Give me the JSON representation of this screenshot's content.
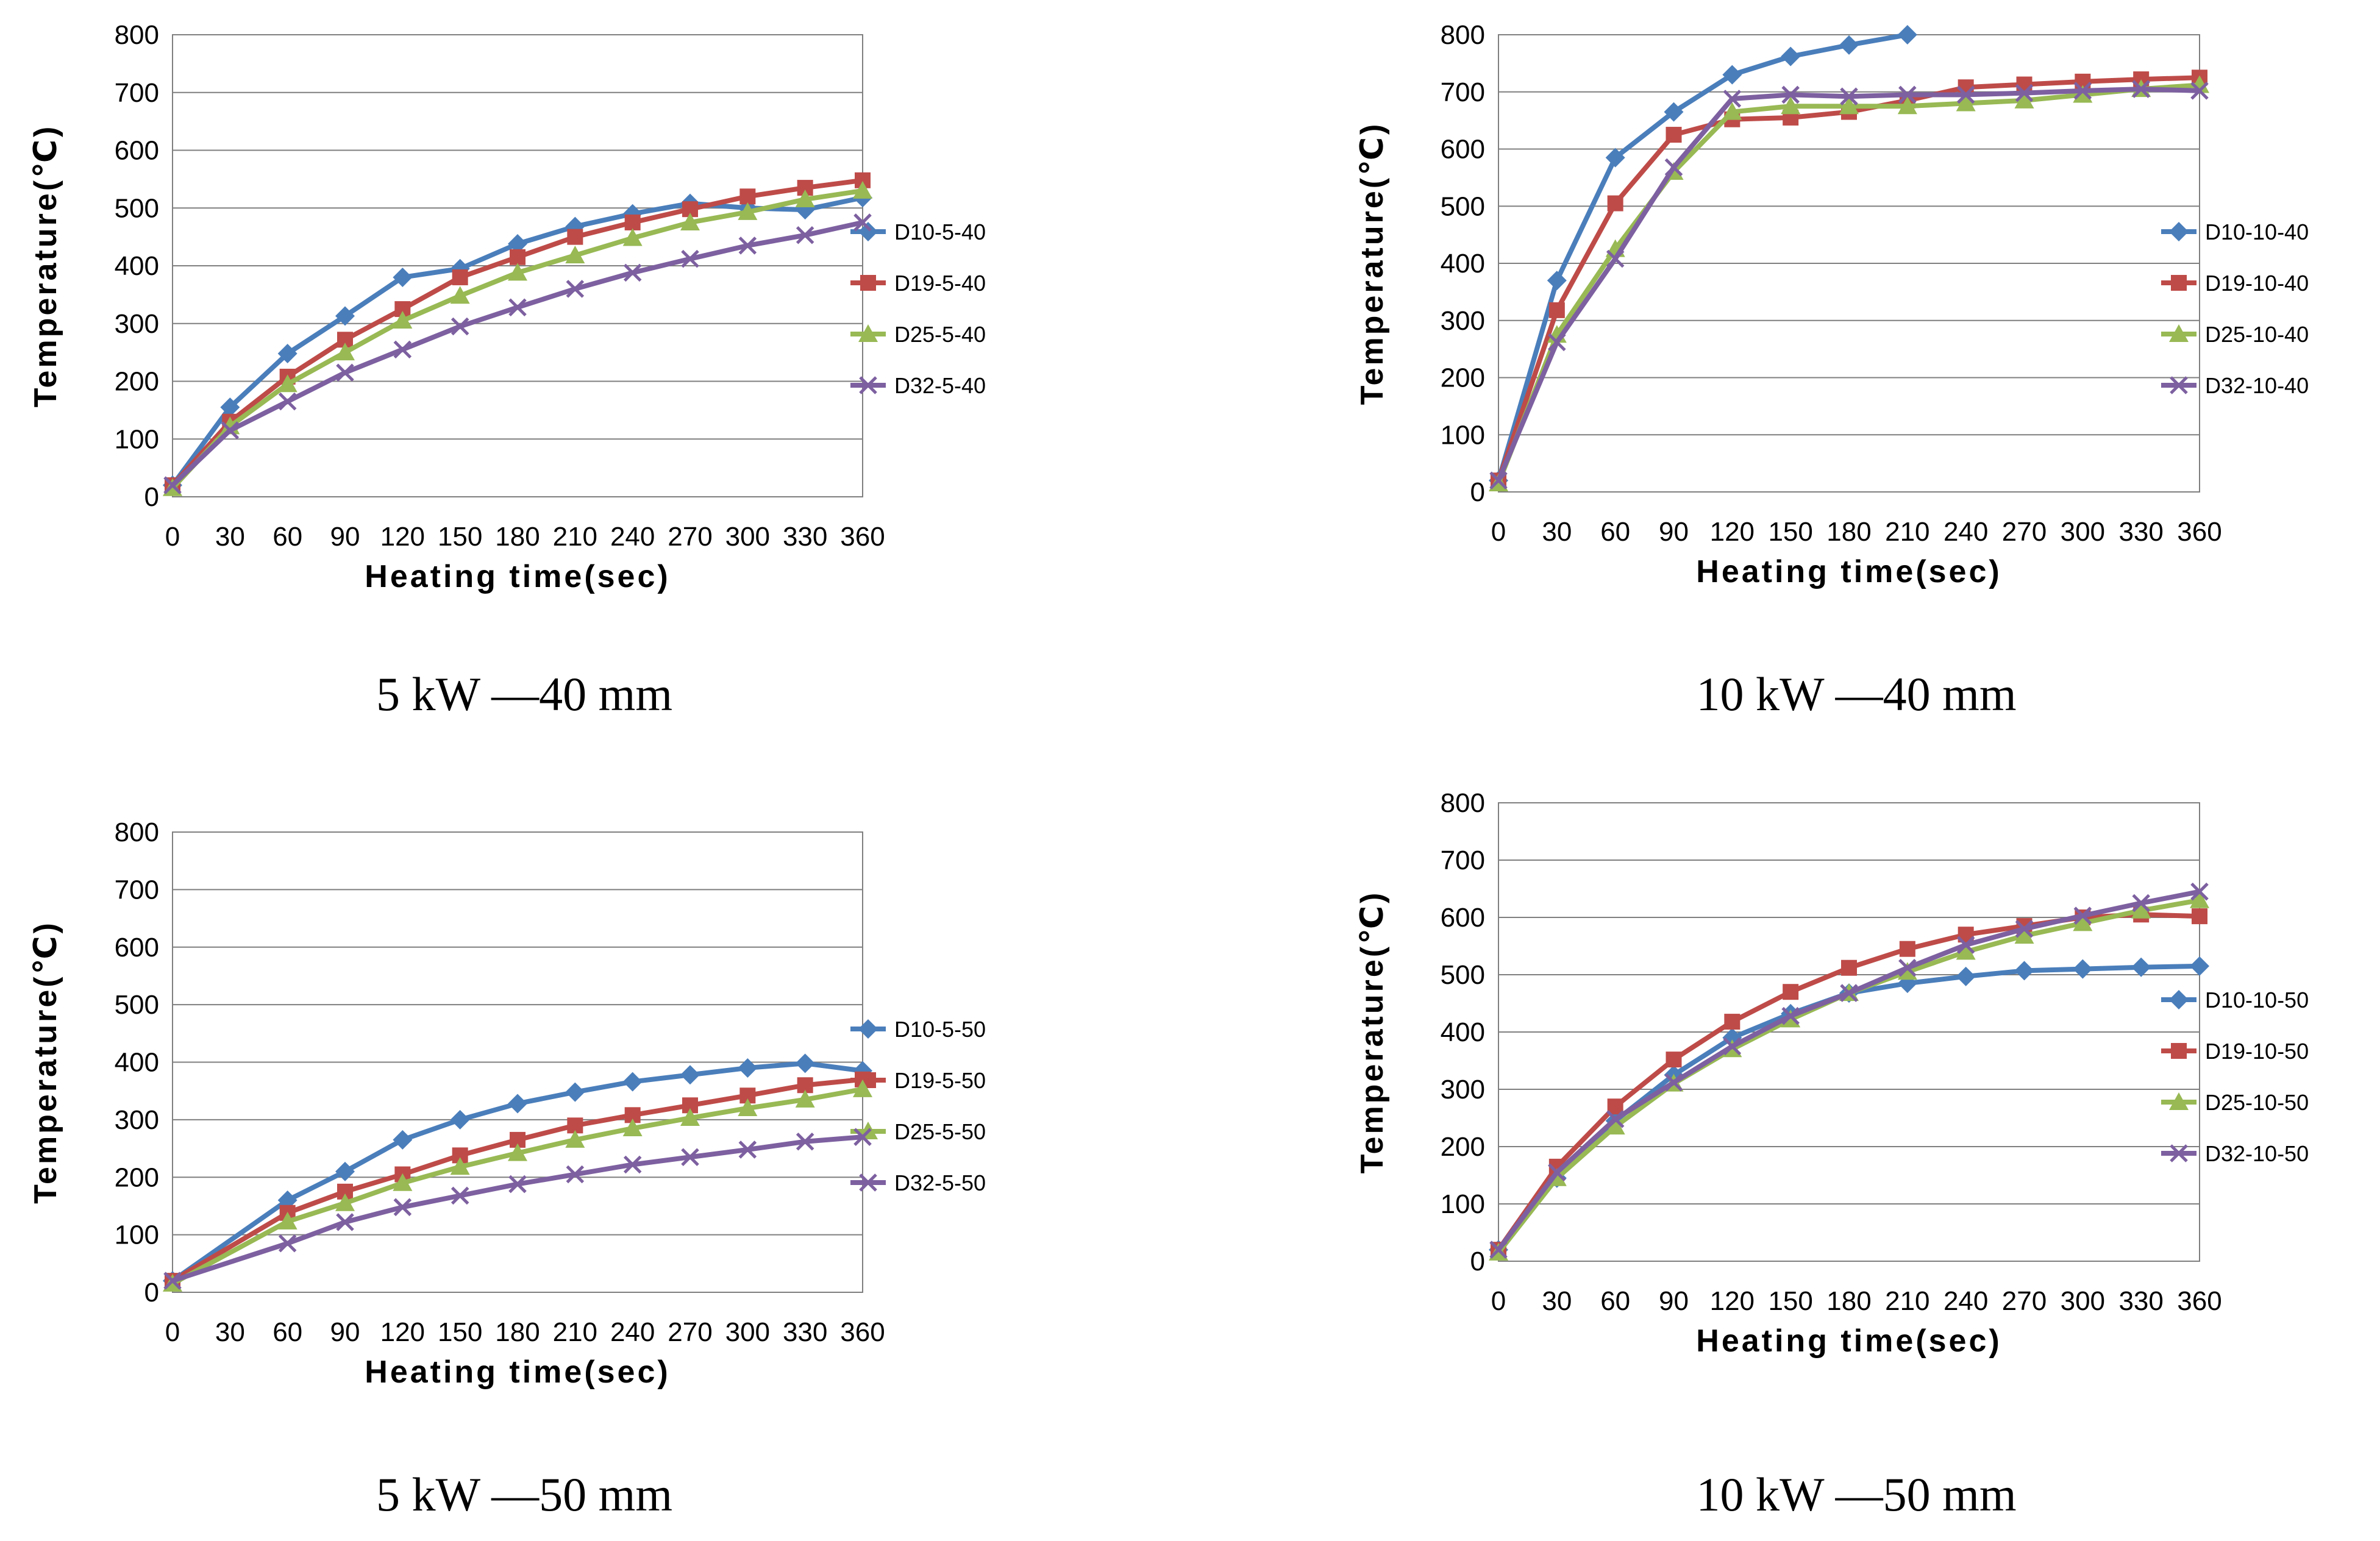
{
  "chart_data": [
    {
      "type": "line",
      "caption": "5 kW —40 mm",
      "xlabel": "Heating time(sec)",
      "ylabel": "Temperature(℃)",
      "x": [
        0,
        30,
        60,
        90,
        120,
        150,
        180,
        210,
        240,
        270,
        300,
        330,
        360
      ],
      "ylim": [
        0,
        800
      ],
      "yticks": [
        0,
        100,
        200,
        300,
        400,
        500,
        600,
        700,
        800
      ],
      "legend_position": "right",
      "series": [
        {
          "name": "D10-5-40",
          "color": "#4a7ebb",
          "marker": "diamond",
          "values": [
            20,
            155,
            248,
            313,
            380,
            395,
            438,
            468,
            490,
            508,
            500,
            497,
            518
          ]
        },
        {
          "name": "D19-5-40",
          "color": "#be4b48",
          "marker": "square",
          "values": [
            20,
            130,
            208,
            272,
            325,
            380,
            415,
            450,
            475,
            498,
            520,
            535,
            548
          ]
        },
        {
          "name": "D25-5-40",
          "color": "#98b954",
          "marker": "triangle",
          "values": [
            15,
            122,
            195,
            250,
            305,
            348,
            388,
            418,
            448,
            475,
            493,
            515,
            530
          ]
        },
        {
          "name": "D32-5-40",
          "color": "#7d60a0",
          "marker": "x",
          "values": [
            20,
            115,
            165,
            215,
            255,
            295,
            328,
            360,
            388,
            412,
            435,
            453,
            475
          ]
        }
      ]
    },
    {
      "type": "line",
      "caption": "10 kW —40 mm",
      "xlabel": "Heating time(sec)",
      "ylabel": "Temperature(℃)",
      "x": [
        0,
        30,
        60,
        90,
        120,
        150,
        180,
        210,
        240,
        270,
        300,
        330,
        360
      ],
      "ylim": [
        0,
        800
      ],
      "yticks": [
        0,
        100,
        200,
        300,
        400,
        500,
        600,
        700,
        800
      ],
      "legend_position": "right",
      "series": [
        {
          "name": "D10-10-40",
          "color": "#4a7ebb",
          "marker": "diamond",
          "values": [
            20,
            370,
            585,
            665,
            730,
            762,
            782,
            800,
            null,
            null,
            null,
            null,
            null
          ]
        },
        {
          "name": "D19-10-40",
          "color": "#be4b48",
          "marker": "square",
          "values": [
            20,
            318,
            505,
            625,
            652,
            655,
            665,
            685,
            708,
            713,
            718,
            722,
            725
          ]
        },
        {
          "name": "D25-10-40",
          "color": "#98b954",
          "marker": "triangle",
          "values": [
            15,
            275,
            425,
            560,
            665,
            675,
            675,
            675,
            680,
            685,
            695,
            705,
            712
          ]
        },
        {
          "name": "D32-10-40",
          "color": "#7d60a0",
          "marker": "x",
          "values": [
            20,
            262,
            408,
            568,
            688,
            695,
            692,
            695,
            695,
            698,
            702,
            705,
            702
          ]
        }
      ]
    },
    {
      "type": "line",
      "caption": "5 kW —50 mm",
      "xlabel": "Heating time(sec)",
      "ylabel": "Temperature(℃)",
      "x": [
        0,
        30,
        60,
        90,
        120,
        150,
        180,
        210,
        240,
        270,
        300,
        330,
        360
      ],
      "ylim": [
        0,
        800
      ],
      "yticks": [
        0,
        100,
        200,
        300,
        400,
        500,
        600,
        700,
        800
      ],
      "legend_position": "right",
      "series": [
        {
          "name": "D10-5-50",
          "color": "#4a7ebb",
          "marker": "diamond",
          "values": [
            20,
            null,
            160,
            210,
            265,
            300,
            328,
            348,
            366,
            378,
            390,
            398,
            385
          ]
        },
        {
          "name": "D19-5-50",
          "color": "#be4b48",
          "marker": "square",
          "values": [
            20,
            null,
            138,
            175,
            205,
            238,
            265,
            290,
            308,
            325,
            342,
            360,
            370
          ]
        },
        {
          "name": "D25-5-50",
          "color": "#98b954",
          "marker": "triangle",
          "values": [
            15,
            null,
            123,
            155,
            190,
            218,
            242,
            265,
            285,
            303,
            320,
            335,
            353
          ]
        },
        {
          "name": "D32-5-50",
          "color": "#7d60a0",
          "marker": "x",
          "values": [
            20,
            null,
            85,
            122,
            148,
            168,
            188,
            205,
            222,
            235,
            248,
            262,
            270
          ]
        }
      ]
    },
    {
      "type": "line",
      "caption": "10 kW —50 mm",
      "xlabel": "Heating time(sec)",
      "ylabel": "Temperature(℃)",
      "x": [
        0,
        30,
        60,
        90,
        120,
        150,
        180,
        210,
        240,
        270,
        300,
        330,
        360
      ],
      "ylim": [
        0,
        800
      ],
      "yticks": [
        0,
        100,
        200,
        300,
        400,
        500,
        600,
        700,
        800
      ],
      "legend_position": "right",
      "series": [
        {
          "name": "D10-10-50",
          "color": "#4a7ebb",
          "marker": "diamond",
          "values": [
            20,
            145,
            245,
            325,
            390,
            432,
            468,
            485,
            497,
            507,
            510,
            513,
            515
          ]
        },
        {
          "name": "D19-10-50",
          "color": "#be4b48",
          "marker": "square",
          "values": [
            20,
            165,
            270,
            352,
            418,
            470,
            512,
            545,
            570,
            585,
            600,
            605,
            602
          ]
        },
        {
          "name": "D25-10-50",
          "color": "#98b954",
          "marker": "triangle",
          "values": [
            15,
            145,
            235,
            310,
            370,
            422,
            468,
            505,
            540,
            568,
            590,
            612,
            630
          ]
        },
        {
          "name": "D32-10-50",
          "color": "#7d60a0",
          "marker": "x",
          "values": [
            20,
            155,
            248,
            312,
            375,
            428,
            468,
            512,
            552,
            580,
            603,
            625,
            645
          ]
        }
      ]
    }
  ]
}
